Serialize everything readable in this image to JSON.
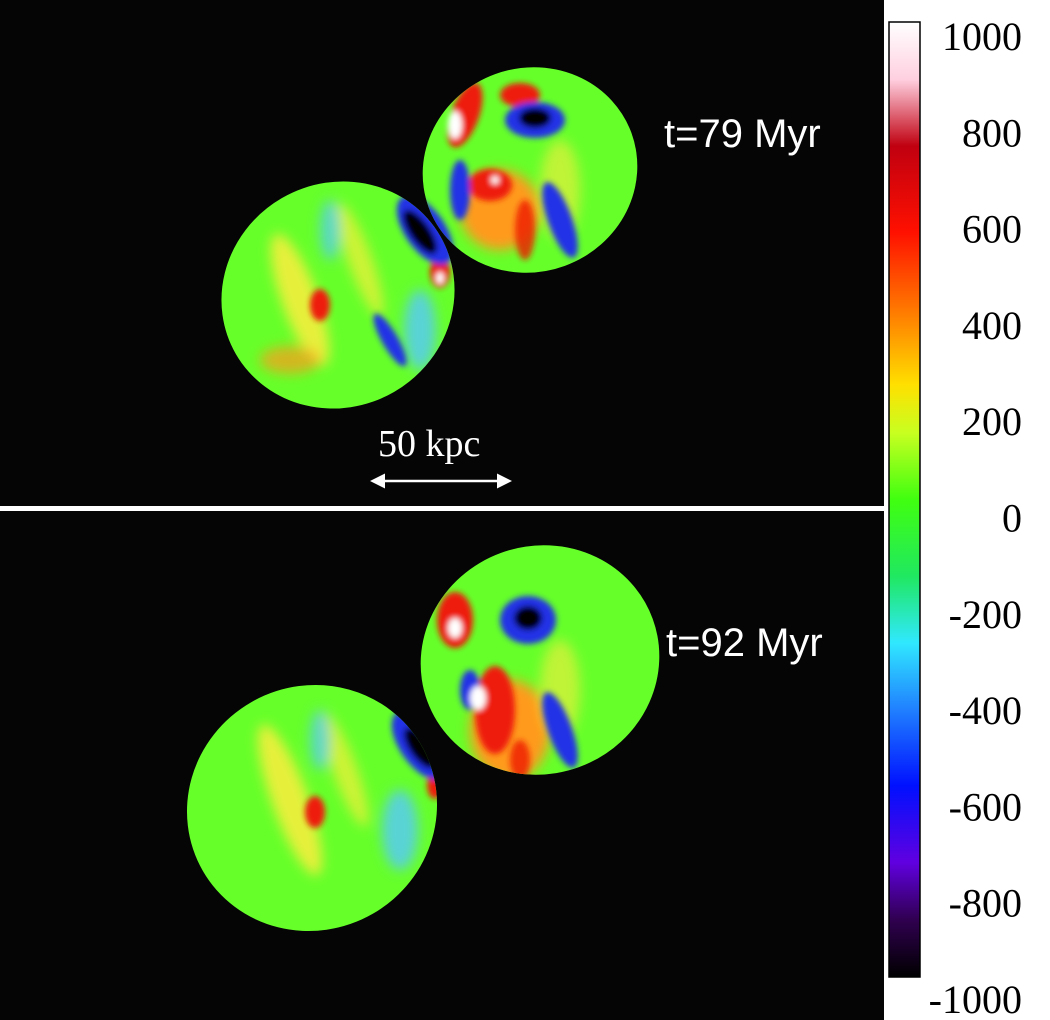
{
  "panels": [
    {
      "id": "top",
      "time_label": "t=79 Myr"
    },
    {
      "id": "bottom",
      "time_label": "t=92 Myr"
    }
  ],
  "scale_bar": {
    "label": "50 kpc"
  },
  "colorbar": {
    "min": -1000,
    "max": 1000,
    "tick_labels": [
      "1000",
      "800",
      "600",
      "400",
      "200",
      "0",
      "-200",
      "-400",
      "-600",
      "-800",
      "-1000"
    ],
    "colors": {
      "max": "#ffffff",
      "high": "#ff0000",
      "upper_mid": "#ff8c00",
      "mid_high": "#ffff00",
      "zero": "#00ff00",
      "mid_low": "#00ffff",
      "lower_mid": "#0000ff",
      "low": "#7700cc",
      "min": "#000000"
    }
  },
  "maps": {
    "colors": {
      "background": "#050505",
      "base": "#66ff2a",
      "yellow": "#e6f03a",
      "orange": "#ff9a1f",
      "red": "#ee1a08",
      "blue": "#2230e6",
      "cyan": "#55c8ff",
      "black": "#050505",
      "white": "#ffffff"
    }
  }
}
